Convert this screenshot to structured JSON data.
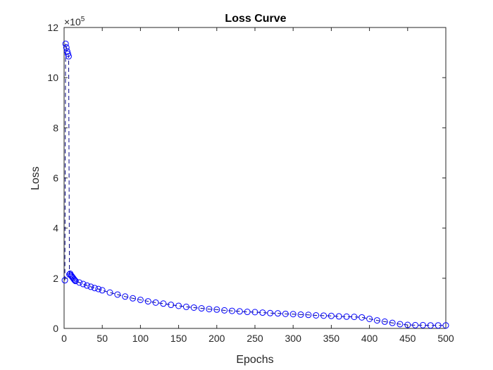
{
  "chart_data": {
    "type": "scatter",
    "title": "Loss Curve",
    "xlabel": "Epochs",
    "ylabel": "Loss",
    "xlim": [
      0,
      500
    ],
    "ylim": [
      0,
      12
    ],
    "y_multiplier": {
      "base": "×10",
      "exponent": "5"
    },
    "xticks": [
      "0",
      "50",
      "100",
      "150",
      "200",
      "250",
      "300",
      "350",
      "400",
      "450",
      "500"
    ],
    "yticks": [
      "0",
      "2",
      "4",
      "6",
      "8",
      "10",
      "12"
    ],
    "grid": false,
    "marker": "circle",
    "line_style": "dashed",
    "series": [
      {
        "color": "#0000ff",
        "x": [
          1,
          2,
          3,
          4,
          5,
          6,
          7,
          8,
          9,
          10,
          11,
          12,
          13,
          14,
          15,
          20,
          25,
          30,
          35,
          40,
          45,
          50,
          60,
          70,
          80,
          90,
          100,
          110,
          120,
          130,
          140,
          150,
          160,
          170,
          180,
          190,
          200,
          210,
          220,
          230,
          240,
          250,
          260,
          270,
          280,
          290,
          300,
          310,
          320,
          330,
          340,
          350,
          360,
          370,
          380,
          390,
          400,
          410,
          420,
          430,
          440,
          450,
          460,
          470,
          480,
          490,
          500
        ],
        "y": [
          1.92,
          11.35,
          11.2,
          11.05,
          10.95,
          10.85,
          2.15,
          2.18,
          2.12,
          2.08,
          2.04,
          2.0,
          1.96,
          1.92,
          1.89,
          1.83,
          1.77,
          1.71,
          1.66,
          1.61,
          1.57,
          1.52,
          1.43,
          1.35,
          1.27,
          1.2,
          1.14,
          1.08,
          1.03,
          0.99,
          0.94,
          0.9,
          0.86,
          0.83,
          0.8,
          0.77,
          0.75,
          0.72,
          0.7,
          0.68,
          0.66,
          0.65,
          0.63,
          0.61,
          0.6,
          0.58,
          0.57,
          0.55,
          0.54,
          0.52,
          0.51,
          0.5,
          0.48,
          0.47,
          0.46,
          0.44,
          0.38,
          0.32,
          0.27,
          0.22,
          0.17,
          0.14,
          0.13,
          0.13,
          0.12,
          0.12,
          0.12
        ]
      }
    ],
    "colors": {
      "axis": "#262626",
      "series": "#0000ff",
      "connector": "#000080"
    }
  }
}
